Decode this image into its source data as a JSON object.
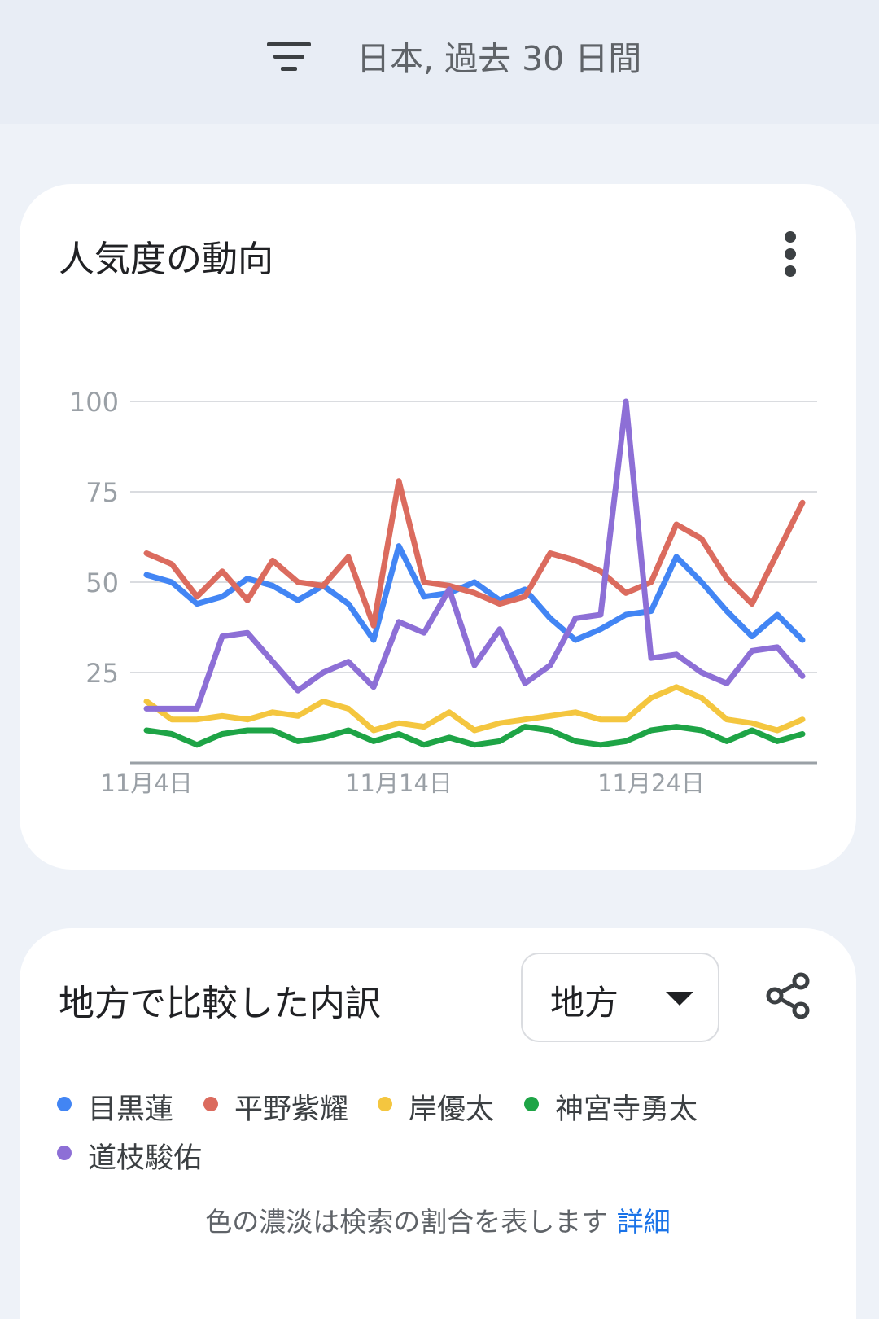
{
  "header": {
    "filter_icon": "filter-list-icon",
    "filter_text": "日本, 過去 30 日間"
  },
  "trend_card": {
    "title": "人気度の動向",
    "menu_icon": "more-vert-icon"
  },
  "chart_data": {
    "type": "line",
    "x": [
      "11月4日",
      "11月5日",
      "11月6日",
      "11月7日",
      "11月8日",
      "11月9日",
      "11月10日",
      "11月11日",
      "11月12日",
      "11月13日",
      "11月14日",
      "11月15日",
      "11月16日",
      "11月17日",
      "11月18日",
      "11月19日",
      "11月20日",
      "11月21日",
      "11月22日",
      "11月23日",
      "11月24日",
      "11月25日",
      "11月26日",
      "11月27日",
      "11月28日",
      "11月29日",
      "11月30日"
    ],
    "xticks": [
      "11月4日",
      "11月14日",
      "11月24日"
    ],
    "xtick_index": [
      0,
      10,
      20
    ],
    "yticks": [
      "100",
      "75",
      "50",
      "25"
    ],
    "ylim": [
      0,
      100
    ],
    "grid": true,
    "series": [
      {
        "name": "目黒蓮",
        "color": "#4285f4",
        "values": [
          52,
          50,
          44,
          46,
          51,
          49,
          45,
          49,
          44,
          34,
          60,
          46,
          47,
          50,
          45,
          48,
          40,
          34,
          37,
          41,
          42,
          57,
          50,
          42,
          35,
          41,
          34
        ]
      },
      {
        "name": "平野紫耀",
        "color": "#db6b5e",
        "values": [
          58,
          55,
          46,
          53,
          45,
          56,
          50,
          49,
          57,
          38,
          78,
          50,
          49,
          47,
          44,
          46,
          58,
          56,
          53,
          47,
          50,
          66,
          62,
          51,
          44,
          58,
          72
        ]
      },
      {
        "name": "岸優太",
        "color": "#f4c63f",
        "values": [
          17,
          12,
          12,
          13,
          12,
          14,
          13,
          17,
          15,
          9,
          11,
          10,
          14,
          9,
          11,
          12,
          13,
          14,
          12,
          12,
          18,
          21,
          18,
          12,
          11,
          9,
          12
        ]
      },
      {
        "name": "神宮寺勇太",
        "color": "#1ea446",
        "values": [
          9,
          8,
          5,
          8,
          9,
          9,
          6,
          7,
          9,
          6,
          8,
          5,
          7,
          5,
          6,
          10,
          9,
          6,
          5,
          6,
          9,
          10,
          9,
          6,
          9,
          6,
          8
        ]
      },
      {
        "name": "道枝駿佑",
        "color": "#8d6fd6",
        "values": [
          15,
          15,
          15,
          35,
          36,
          28,
          20,
          25,
          28,
          21,
          39,
          36,
          48,
          27,
          37,
          22,
          27,
          40,
          41,
          100,
          29,
          30,
          25,
          22,
          31,
          32,
          24
        ]
      }
    ]
  },
  "region_card": {
    "title": "地方で比較した内訳",
    "dropdown_value": "地方",
    "share_icon": "share-icon",
    "note": "色の濃淡は検索の割合を表します",
    "note_link": "詳細"
  }
}
